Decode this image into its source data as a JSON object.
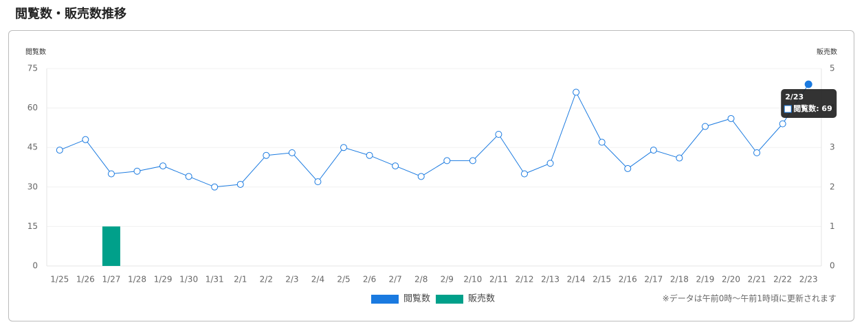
{
  "header": {
    "title": "閲覧数・販売数推移"
  },
  "chart_data": {
    "type": "line-bar",
    "y_label": "閲覧数",
    "y2_label": "販売数",
    "categories": [
      "1/25",
      "1/26",
      "1/27",
      "1/28",
      "1/29",
      "1/30",
      "1/31",
      "2/1",
      "2/2",
      "2/3",
      "2/4",
      "2/5",
      "2/6",
      "2/7",
      "2/8",
      "2/9",
      "2/10",
      "2/11",
      "2/12",
      "2/13",
      "2/14",
      "2/15",
      "2/16",
      "2/17",
      "2/18",
      "2/19",
      "2/20",
      "2/21",
      "2/22",
      "2/23"
    ],
    "series": [
      {
        "name": "閲覧数",
        "color": "#1a7ae0",
        "type": "line",
        "values": [
          44,
          48,
          35,
          36,
          38,
          34,
          30,
          31,
          42,
          43,
          32,
          45,
          42,
          38,
          34,
          40,
          40,
          50,
          35,
          39,
          66,
          47,
          37,
          44,
          41,
          53,
          56,
          43,
          54,
          69
        ]
      },
      {
        "name": "販売数",
        "color": "#00a08a",
        "type": "bar",
        "axis": "y2",
        "values": [
          0,
          0,
          1,
          0,
          0,
          0,
          0,
          0,
          0,
          0,
          0,
          0,
          0,
          0,
          0,
          0,
          0,
          0,
          0,
          0,
          0,
          0,
          0,
          0,
          0,
          0,
          0,
          0,
          0,
          0
        ]
      }
    ],
    "ylim": [
      0,
      75
    ],
    "yticks": [
      0,
      15,
      30,
      45,
      60,
      75
    ],
    "y2lim": [
      0,
      5
    ],
    "y2ticks": [
      0,
      1,
      2,
      3,
      4,
      5
    ],
    "grid": true,
    "tooltip": {
      "title": "2/23",
      "text": "閲覧数: 69"
    },
    "note": "※データは午前0時～午前1時頃に更新されます"
  }
}
